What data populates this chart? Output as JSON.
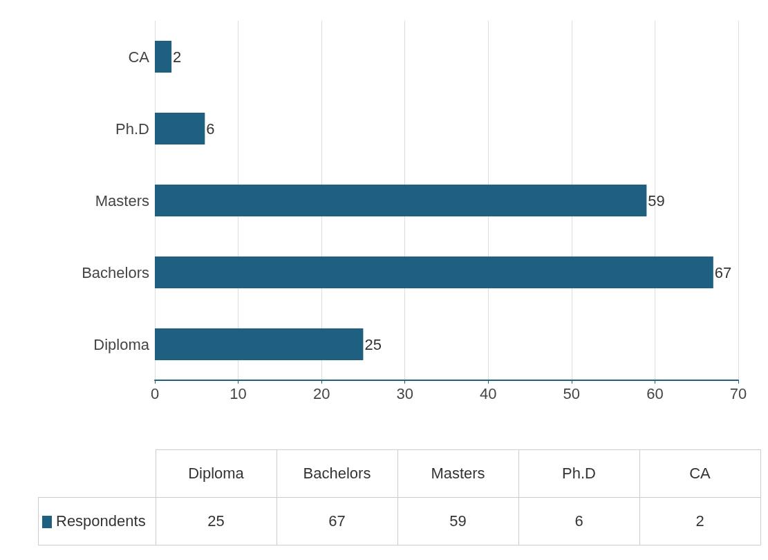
{
  "chart_data": {
    "type": "bar",
    "orientation": "horizontal",
    "categories": [
      "CA",
      "Ph.D",
      "Masters",
      "Bachelors",
      "Diploma"
    ],
    "series": [
      {
        "name": "Respondents",
        "color": "#1f5f7f",
        "values": [
          2,
          6,
          59,
          67,
          25
        ]
      }
    ],
    "annotations": [
      "25",
      "67",
      "59",
      "6",
      "2"
    ],
    "xlim": [
      0,
      70
    ],
    "xticks": [
      0,
      10,
      20,
      30,
      40,
      50,
      60,
      70
    ],
    "grid": "x",
    "data_labels": true,
    "legend": "bottom"
  }
}
